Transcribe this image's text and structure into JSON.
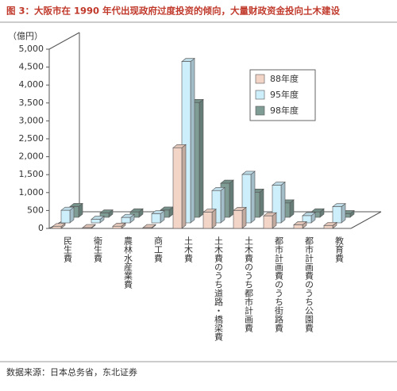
{
  "chart_data": {
    "type": "bar3d",
    "title": "图 3：大阪市在 1990 年代出现政府过度投资的倾向，大量财政资金投向土木建设",
    "y_label": "（億円）",
    "source": "数据来源：日本总务省，东北证券",
    "categories": [
      "民生費",
      "衛生費",
      "農林水産業費",
      "商工費",
      "土木費",
      "土木費のうち道路・橋梁費",
      "土木費のうち都市計画費",
      "都市計画費のうち街路費",
      "都市計画費のうち公園費",
      "教育費"
    ],
    "series": [
      {
        "name": "88年度",
        "color": "#f3d5c7",
        "values": [
          50,
          20,
          60,
          20,
          2250,
          450,
          500,
          350,
          100,
          80
        ]
      },
      {
        "name": "95年度",
        "color": "#cdeefb",
        "values": [
          350,
          100,
          150,
          250,
          4500,
          900,
          1350,
          1050,
          200,
          450
        ]
      },
      {
        "name": "98年度",
        "color": "#7f9c95",
        "values": [
          300,
          120,
          150,
          200,
          3200,
          950,
          700,
          400,
          150,
          100
        ]
      }
    ],
    "ylim": [
      0,
      5000
    ],
    "yticks": [
      0,
      500,
      {
        "value": 1000,
        "label": "1,000"
      },
      {
        "value": 1500,
        "label": "1,500"
      },
      {
        "value": 2000,
        "label": "2,000"
      },
      {
        "value": 2500,
        "label": "2,500"
      },
      {
        "value": 3000,
        "label": "3,000"
      },
      {
        "value": 3500,
        "label": "3,500"
      },
      {
        "value": 4000,
        "label": "4,000"
      },
      {
        "value": 4500,
        "label": "4,500"
      },
      {
        "value": 5000,
        "label": "5,000"
      }
    ]
  }
}
